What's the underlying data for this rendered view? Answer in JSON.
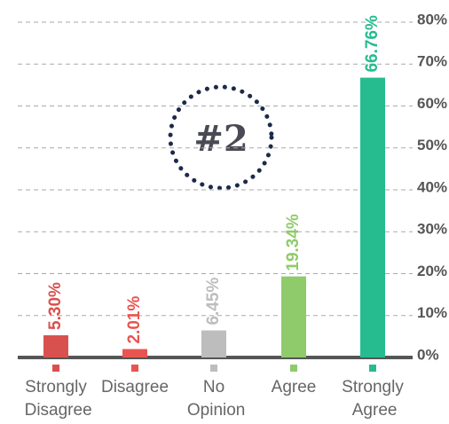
{
  "chart_data": {
    "type": "bar",
    "categories": [
      "Strongly Disagree",
      "Disagree",
      "No Opinion",
      "Agree",
      "Strongly Agree"
    ],
    "values": [
      5.3,
      2.01,
      6.45,
      19.34,
      66.76
    ],
    "value_labels": [
      "5.30%",
      "2.01%",
      "6.45%",
      "19.34%",
      "66.76%"
    ],
    "colors": [
      "#d9514e",
      "#e85550",
      "#bdbdbd",
      "#8fca6b",
      "#26bc8f"
    ],
    "ylim": [
      0,
      80
    ],
    "yticks": [
      {
        "value": 0,
        "label": "0%"
      },
      {
        "value": 10,
        "label": "10%"
      },
      {
        "value": 20,
        "label": "20%"
      },
      {
        "value": 30,
        "label": "30%"
      },
      {
        "value": 40,
        "label": "40%"
      },
      {
        "value": 50,
        "label": "50%"
      },
      {
        "value": 60,
        "label": "60%"
      },
      {
        "value": 70,
        "label": "70%"
      },
      {
        "value": 80,
        "label": "80%"
      }
    ],
    "grid": true,
    "annotation": "#2"
  }
}
